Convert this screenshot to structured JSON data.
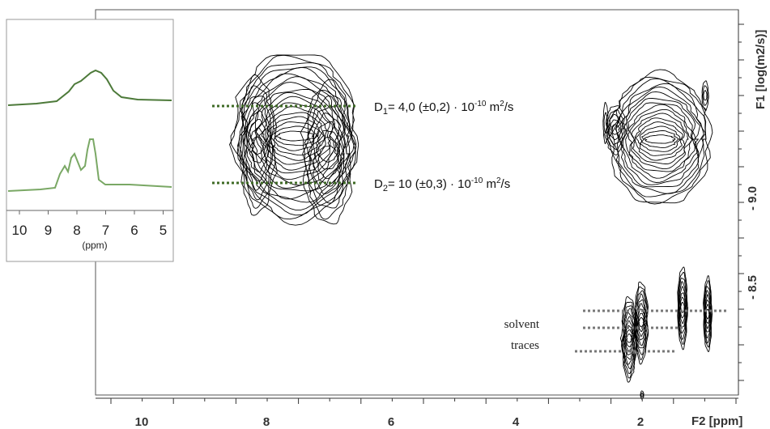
{
  "inset": {
    "x_ticks": [
      "10",
      "9",
      "8",
      "7",
      "6",
      "5"
    ],
    "x_label": "(ppm)"
  },
  "main": {
    "x_ticks": [
      "10",
      "8",
      "6",
      "4",
      "2"
    ],
    "x_label": "F2 [ppm]",
    "y_ticks": [
      "- 9.0",
      "- 8.5"
    ],
    "y_label": "F1 [log(m2/s)]"
  },
  "annotations": {
    "d1": {
      "symbol": "D",
      "sub": "1",
      "text": "= 4,0 (±0,2) · 10",
      "sup": "-10",
      "unit": " m",
      "unit_sup": "2",
      "tail": "/s"
    },
    "d2": {
      "symbol": "D",
      "sub": "2",
      "text": "= 10 (±0,3) · 10",
      "sup": "-10",
      "unit": " m",
      "unit_sup": "2",
      "tail": "/s"
    },
    "solvent": [
      "solvent",
      "traces"
    ]
  }
}
